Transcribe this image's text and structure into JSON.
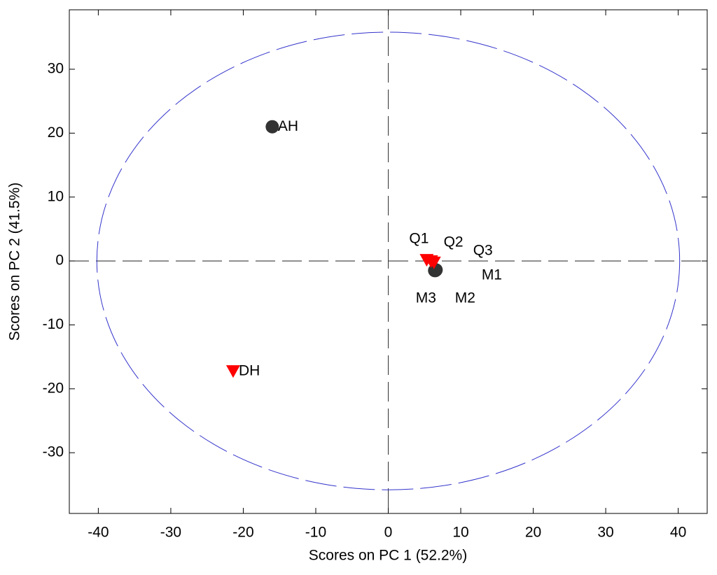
{
  "chart_data": {
    "type": "scatter",
    "x_label": "Scores on PC 1 (52.2%)",
    "y_label": "Scores on PC 2 (41.5%)",
    "xlim": [
      -44,
      44
    ],
    "ylim": [
      -39.5,
      39.3
    ],
    "xticks": [
      -40,
      -30,
      -20,
      -10,
      0,
      10,
      20,
      30,
      40
    ],
    "yticks": [
      -30,
      -20,
      -10,
      0,
      10,
      20,
      30
    ],
    "zero_lines": true,
    "ellipse": {
      "center": [
        0,
        0
      ],
      "radius_x": 40.2,
      "radius_y": 35.8,
      "color": "#3333cc"
    },
    "series": [
      {
        "marker": "circle",
        "color": "#333333",
        "labels": [
          "AH",
          "M1",
          "M2",
          "M3"
        ],
        "x": [
          -16,
          6.6,
          6.5,
          6.4
        ],
        "values": [
          21,
          -1.4,
          -1.5,
          -1.5
        ]
      },
      {
        "marker": "triangle-down",
        "color": "#ff0000",
        "labels": [
          "DH",
          "Q1",
          "Q2",
          "Q3"
        ],
        "x": [
          -21.4,
          5.3,
          5.9,
          6.3
        ],
        "values": [
          -17.3,
          0.1,
          -0.1,
          -0.3
        ]
      }
    ]
  }
}
